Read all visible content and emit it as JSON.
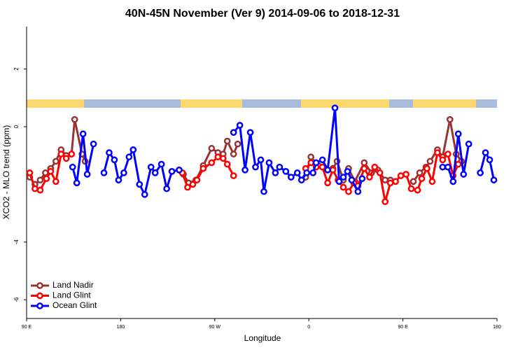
{
  "chart_data": {
    "type": "line",
    "title": "40N-45N November (Ver 9)   2014-09-06 to 2018-12-31",
    "xlabel": "Longitude",
    "ylabel": "XCO2 - MLO trend (ppm)",
    "xlim": [
      90,
      540
    ],
    "xticks": [
      {
        "value": 90,
        "label": "90 E"
      },
      {
        "value": 180,
        "label": "180"
      },
      {
        "value": 270,
        "label": "90 W"
      },
      {
        "value": 360,
        "label": "0"
      },
      {
        "value": 450,
        "label": "90 E"
      },
      {
        "value": 540,
        "label": "180"
      }
    ],
    "ylim": [
      -6.65,
      3.47
    ],
    "yticks": [
      -6,
      -4,
      0,
      2
    ],
    "legend": "bottomleft",
    "series": [
      {
        "name": "Land Nadir",
        "color": "#993333",
        "x": [
          93,
          98,
          103,
          108,
          113,
          118,
          123,
          128,
          133,
          136,
          143,
          146,
          192,
          240,
          245,
          252,
          259,
          267,
          273,
          278,
          282,
          288,
          292,
          326,
          357,
          362,
          369,
          376,
          383,
          387,
          393,
          398,
          404,
          413,
          420,
          426,
          433,
          438,
          450,
          460,
          466,
          472,
          476,
          483,
          488,
          495,
          501,
          506
        ],
        "values": [
          -1.75,
          -2.0,
          -1.85,
          -1.6,
          -1.45,
          -1.2,
          -0.8,
          -1.0,
          -0.95,
          0.25,
          -0.95,
          -1.2,
          null,
          -1.65,
          -1.95,
          -1.85,
          -1.35,
          -0.75,
          -0.9,
          -0.95,
          -0.5,
          -0.95,
          -0.6,
          null,
          -1.75,
          -1.05,
          -1.35,
          -1.45,
          -1.45,
          -1.2,
          -1.85,
          -1.45,
          -1.9,
          -1.25,
          -1.6,
          -1.5,
          -1.85,
          -1.85,
          null,
          -1.9,
          -1.6,
          -1.4,
          -1.2,
          -0.8,
          -1.05,
          0.25,
          -0.95,
          -1.2
        ]
      },
      {
        "name": "Land Glint",
        "color": "#ff0000",
        "x": [
          93,
          98,
          103,
          109,
          113,
          118,
          123,
          128,
          133,
          180,
          239,
          244,
          249,
          253,
          259,
          267,
          273,
          278,
          282,
          288,
          320,
          357,
          362,
          367,
          373,
          378,
          383,
          388,
          393,
          398,
          403,
          407,
          413,
          418,
          423,
          428,
          433,
          438,
          443,
          448,
          453,
          458,
          464,
          468,
          473,
          478,
          483,
          488,
          493,
          498,
          503
        ],
        "values": [
          -1.6,
          -2.15,
          -2.2,
          -1.8,
          -1.55,
          -1.9,
          -0.95,
          -1.1,
          -0.95,
          null,
          -1.6,
          -2.1,
          -2.0,
          -1.85,
          -1.45,
          -1.25,
          -1.05,
          -1.1,
          -1.3,
          -1.7,
          null,
          -1.45,
          -1.25,
          -1.4,
          -1.4,
          -1.95,
          -1.5,
          -1.85,
          -2.1,
          -2.25,
          -1.95,
          -2.05,
          -1.45,
          -1.75,
          -1.4,
          -1.6,
          -2.6,
          -1.95,
          -1.9,
          -1.7,
          -1.65,
          -2.15,
          -2.2,
          -1.8,
          -1.45,
          -1.9,
          -0.9,
          -1.15,
          -0.95,
          -1.7,
          -1.3
        ]
      },
      {
        "name": "Ocean Glint",
        "color": "#0000ff",
        "x": [
          134,
          138,
          144,
          148,
          154,
          158,
          164,
          169,
          174,
          178,
          183,
          188,
          192,
          198,
          203,
          209,
          213,
          219,
          224,
          229,
          236,
          280,
          288,
          294,
          299,
          304,
          309,
          314,
          317,
          322,
          328,
          332,
          338,
          343,
          349,
          353,
          358,
          364,
          367,
          373,
          378,
          385,
          389,
          393,
          397,
          401,
          407,
          411,
          480,
          488,
          493,
          498,
          503,
          508,
          513,
          517,
          524,
          529,
          533,
          537
        ],
        "values": [
          -1.4,
          -1.95,
          -0.25,
          -1.65,
          -0.6,
          null,
          -1.6,
          -0.9,
          -1.15,
          -1.85,
          -1.6,
          -1.05,
          -0.8,
          -2.0,
          -2.35,
          -1.4,
          -1.6,
          -1.3,
          -2.15,
          -1.55,
          -1.5,
          null,
          -0.2,
          0.05,
          -1.5,
          -0.2,
          -1.4,
          -1.15,
          -2.25,
          -1.25,
          -1.6,
          -1.4,
          -1.55,
          -1.75,
          -1.6,
          -1.85,
          -1.6,
          -1.6,
          -1.25,
          -1.15,
          -1.5,
          0.65,
          -1.9,
          -1.75,
          -1.55,
          -1.85,
          -2.25,
          -1.8,
          null,
          -1.4,
          -1.4,
          -1.9,
          -0.25,
          -1.65,
          -0.6,
          null,
          -1.6,
          -0.9,
          -1.15,
          -1.85
        ]
      }
    ]
  }
}
